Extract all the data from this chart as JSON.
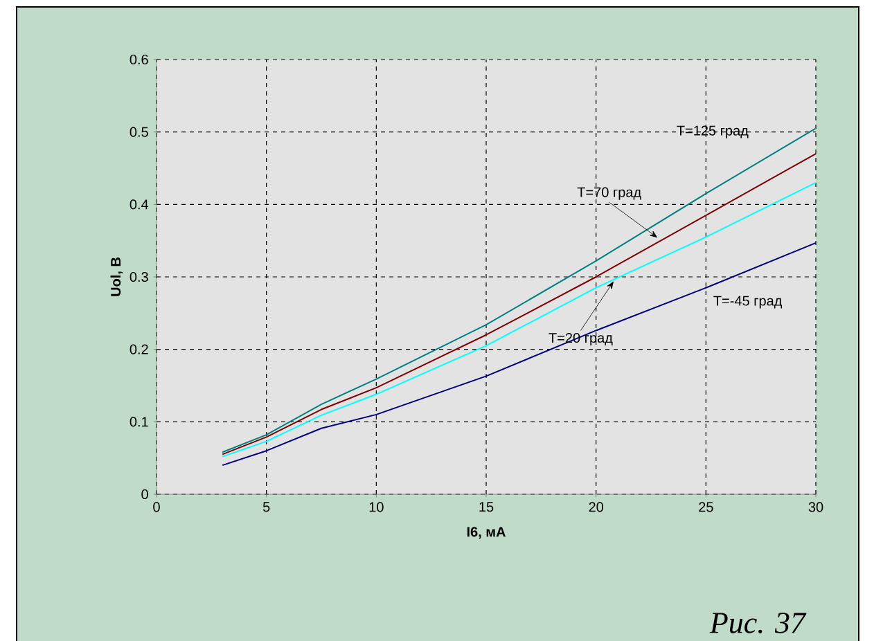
{
  "chart_data": {
    "type": "line",
    "xlabel": "I6, мА",
    "ylabel": "Uol, B",
    "x": [
      3,
      5,
      7.5,
      10,
      15,
      20,
      25,
      30
    ],
    "series": [
      {
        "color": "#008080",
        "values": [
          0.058,
          0.082,
          0.124,
          0.159,
          0.234,
          0.322,
          0.415,
          0.505
        ]
      },
      {
        "color": "#800000",
        "values": [
          0.055,
          0.079,
          0.117,
          0.147,
          0.22,
          0.3,
          0.385,
          0.47
        ]
      },
      {
        "color": "#00ffff",
        "values": [
          0.052,
          0.073,
          0.109,
          0.138,
          0.205,
          0.285,
          0.355,
          0.43
        ]
      },
      {
        "color": "#000080",
        "values": [
          0.04,
          0.06,
          0.091,
          0.11,
          0.163,
          0.226,
          0.285,
          0.347
        ]
      }
    ],
    "xlim": [
      0,
      30
    ],
    "ylim": [
      0,
      0.6
    ],
    "xticks": [
      0,
      5,
      10,
      15,
      20,
      25,
      30
    ],
    "yticks": [
      0,
      0.1,
      0.2,
      0.3,
      0.4,
      0.5,
      0.6
    ],
    "grid": true,
    "annotations": [
      {
        "text": "T=125 град",
        "x": 27,
        "y": 0.455
      },
      {
        "text": "T=70 град",
        "x": 22.8,
        "y": 0.354
      },
      {
        "text": "T=20 град",
        "x": 20.8,
        "y": 0.294
      },
      {
        "text": "T=-45 град",
        "x": 27,
        "y": 0.3
      },
      "Рис. 37"
    ]
  }
}
